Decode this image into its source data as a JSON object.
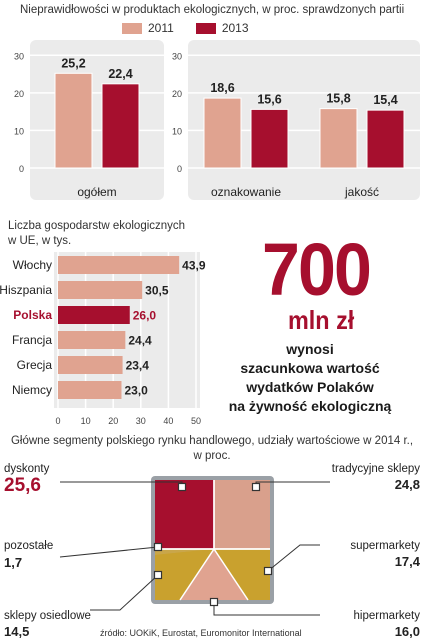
{
  "chart_data": [
    {
      "type": "bar",
      "title": "Nieprawidłowości w produktach ekologicznych, w proc. sprawdzonych partii",
      "legend": [
        "2011",
        "2013"
      ],
      "colors": {
        "2011": "#e0a390",
        "2013": "#a60f2e"
      },
      "categories": [
        "ogółem",
        "oznakowanie",
        "jakość"
      ],
      "series": [
        {
          "name": "2011",
          "values": [
            25.2,
            18.6,
            15.8
          ],
          "labels": [
            "25,2",
            "18,6",
            "15,8"
          ]
        },
        {
          "name": "2013",
          "values": [
            22.4,
            15.6,
            15.4
          ],
          "labels": [
            "22,4",
            "15,6",
            "15,4"
          ]
        }
      ],
      "yticks": [
        "0",
        "10",
        "20",
        "30"
      ],
      "ylim": [
        0,
        30
      ],
      "grid": true
    },
    {
      "type": "bar",
      "orientation": "horizontal",
      "title_lines": [
        "Liczba gospodarstw ekologicznych",
        "w UE, w tys."
      ],
      "categories": [
        "Włochy",
        "Hiszpania",
        "Polska",
        "Francja",
        "Grecja",
        "Niemcy"
      ],
      "values": [
        43.9,
        30.5,
        26.0,
        24.4,
        23.4,
        23.0
      ],
      "labels": [
        "43,9",
        "30,5",
        "26,0",
        "24,4",
        "23,4",
        "23,0"
      ],
      "highlight": "Polska",
      "xticks": [
        "0",
        "10",
        "20",
        "30",
        "40",
        "50"
      ],
      "xlim": [
        0,
        50
      ],
      "colors": {
        "bar": "#e0a390",
        "highlight": "#a60f2e"
      }
    },
    {
      "type": "treemap",
      "title_lines": [
        "Główne segmenty polskiego rynku handlowego, udziały wartościowe w 2014 r.,",
        "w proc."
      ],
      "segments": [
        {
          "name": "dyskonty",
          "value": 25.6,
          "label": "25,6",
          "color": "#a60f2e"
        },
        {
          "name": "tradycyjne sklepy",
          "value": 24.8,
          "label": "24,8",
          "color": "#d9a08c"
        },
        {
          "name": "pozostałe",
          "value": 1.7,
          "label": "1,7",
          "color": "#c9a64a"
        },
        {
          "name": "supermarkety",
          "value": 17.4,
          "label": "17,4",
          "color": "#c9a12e"
        },
        {
          "name": "hipermarkety",
          "value": 16.0,
          "label": "16,0",
          "color": "#e0a390"
        },
        {
          "name": "sklepy osiedlowe",
          "value": 14.5,
          "label": "14,5",
          "color": "#c9a12e"
        }
      ]
    }
  ],
  "highlight_box": {
    "number": "700",
    "unit": "mln zł",
    "lines": [
      "wynosi",
      "szacunkowa wartość",
      "wydatków Polaków",
      "na żywność ekologiczną"
    ]
  },
  "source": "źródło: UOKiK, Eurostat, Euromonitor International"
}
